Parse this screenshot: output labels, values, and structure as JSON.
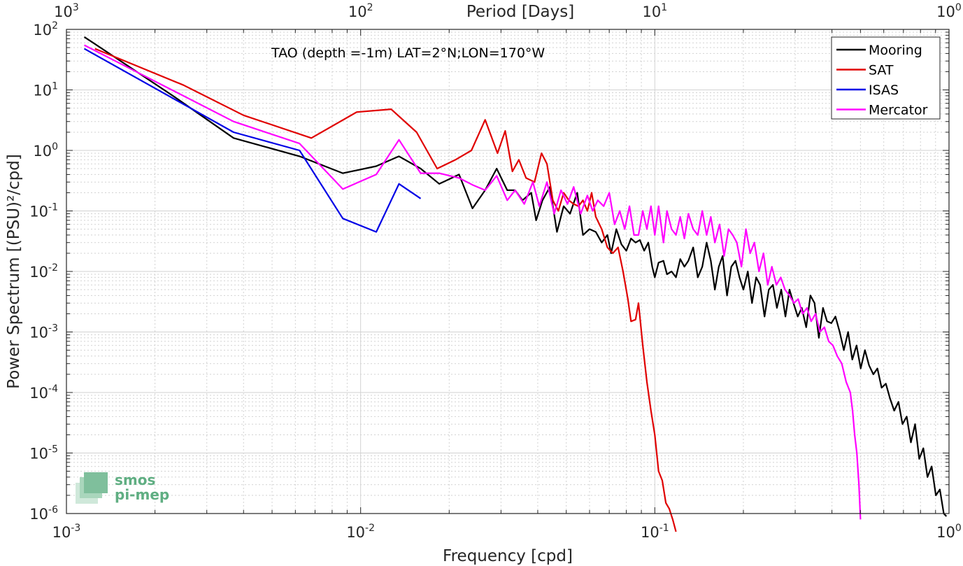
{
  "chart_data": {
    "type": "line",
    "title": "",
    "annotation": "TAO (depth =-1m) LAT=2°N;LON=170°W",
    "xlabel": "Frequency [cpd]",
    "ylabel": "Power Spectrum [(PSU)²/cpd]",
    "x2label": "Period [Days]",
    "xscale": "log",
    "yscale": "log",
    "xlim": [
      0.001,
      1
    ],
    "ylim": [
      1e-06,
      100
    ],
    "grid": true,
    "legend_position": "top-right",
    "x_ticks": [
      {
        "value": 0.001,
        "base": "10",
        "exp": "-3"
      },
      {
        "value": 0.01,
        "base": "10",
        "exp": "-2"
      },
      {
        "value": 0.1,
        "base": "10",
        "exp": "-1"
      },
      {
        "value": 1,
        "base": "10",
        "exp": "0"
      }
    ],
    "top_ticks": [
      {
        "value": 0.001,
        "base": "10",
        "exp": "3"
      },
      {
        "value": 0.01,
        "base": "10",
        "exp": "2"
      },
      {
        "value": 0.1,
        "base": "10",
        "exp": "1"
      },
      {
        "value": 1,
        "base": "10",
        "exp": "0"
      }
    ],
    "y_ticks": [
      {
        "value": 100,
        "base": "10",
        "exp": "2"
      },
      {
        "value": 10,
        "base": "10",
        "exp": "1"
      },
      {
        "value": 1,
        "base": "10",
        "exp": "0"
      },
      {
        "value": 0.1,
        "base": "10",
        "exp": "-1"
      },
      {
        "value": 0.01,
        "base": "10",
        "exp": "-2"
      },
      {
        "value": 0.001,
        "base": "10",
        "exp": "-3"
      },
      {
        "value": 0.0001,
        "base": "10",
        "exp": "-4"
      },
      {
        "value": 1e-05,
        "base": "10",
        "exp": "-5"
      },
      {
        "value": 1e-06,
        "base": "10",
        "exp": "-6"
      }
    ],
    "series": [
      {
        "name": "Mooring",
        "color": "#000000",
        "x": [
          0.00115,
          0.0023,
          0.0037,
          0.0062,
          0.0087,
          0.0113,
          0.0135,
          0.016,
          0.0185,
          0.0216,
          0.024,
          0.0265,
          0.029,
          0.0315,
          0.0335,
          0.0355,
          0.038,
          0.0395,
          0.0415,
          0.044,
          0.0465,
          0.049,
          0.0515,
          0.0545,
          0.057,
          0.06,
          0.063,
          0.066,
          0.069,
          0.071,
          0.074,
          0.077,
          0.08,
          0.083,
          0.086,
          0.089,
          0.092,
          0.095,
          0.098,
          0.1,
          0.103,
          0.107,
          0.11,
          0.114,
          0.118,
          0.122,
          0.126,
          0.13,
          0.135,
          0.14,
          0.145,
          0.15,
          0.155,
          0.16,
          0.165,
          0.17,
          0.176,
          0.182,
          0.188,
          0.194,
          0.2,
          0.207,
          0.214,
          0.221,
          0.228,
          0.236,
          0.244,
          0.252,
          0.26,
          0.269,
          0.278,
          0.287,
          0.296,
          0.306,
          0.316,
          0.327,
          0.338,
          0.349,
          0.361,
          0.373,
          0.385,
          0.398,
          0.411,
          0.425,
          0.439,
          0.454,
          0.469,
          0.485,
          0.501,
          0.518,
          0.535,
          0.553,
          0.571,
          0.59,
          0.61,
          0.63,
          0.651,
          0.673,
          0.695,
          0.718,
          0.742,
          0.767,
          0.792,
          0.818,
          0.845,
          0.873,
          0.902,
          0.931,
          0.96,
          0.98
        ],
        "y": [
          75,
          8,
          1.6,
          0.8,
          0.42,
          0.55,
          0.8,
          0.5,
          0.28,
          0.4,
          0.11,
          0.22,
          0.5,
          0.22,
          0.22,
          0.15,
          0.2,
          0.07,
          0.15,
          0.25,
          0.045,
          0.12,
          0.09,
          0.2,
          0.04,
          0.05,
          0.045,
          0.03,
          0.04,
          0.02,
          0.05,
          0.028,
          0.022,
          0.035,
          0.03,
          0.033,
          0.022,
          0.03,
          0.012,
          0.008,
          0.014,
          0.015,
          0.009,
          0.01,
          0.008,
          0.016,
          0.012,
          0.015,
          0.025,
          0.008,
          0.012,
          0.03,
          0.015,
          0.005,
          0.012,
          0.018,
          0.004,
          0.012,
          0.015,
          0.008,
          0.005,
          0.01,
          0.003,
          0.008,
          0.006,
          0.0018,
          0.005,
          0.006,
          0.0025,
          0.005,
          0.0018,
          0.005,
          0.003,
          0.0018,
          0.0025,
          0.0012,
          0.004,
          0.003,
          0.0008,
          0.0025,
          0.0015,
          0.0014,
          0.0018,
          0.001,
          0.0005,
          0.001,
          0.00035,
          0.0006,
          0.00025,
          0.0005,
          0.00028,
          0.0002,
          0.00025,
          0.00012,
          0.00014,
          8e-05,
          5e-05,
          7e-05,
          3e-05,
          4e-05,
          1.5e-05,
          3e-05,
          8e-06,
          1.2e-05,
          4e-06,
          6e-06,
          2e-06,
          2.5e-06,
          1e-06,
          9e-07
        ]
      },
      {
        "name": "SAT",
        "color": "#e00000",
        "x": [
          0.00125,
          0.0025,
          0.004,
          0.0068,
          0.0097,
          0.0127,
          0.0155,
          0.0182,
          0.021,
          0.0238,
          0.0265,
          0.0292,
          0.031,
          0.0328,
          0.0345,
          0.0365,
          0.039,
          0.0412,
          0.043,
          0.045,
          0.047,
          0.049,
          0.051,
          0.053,
          0.055,
          0.057,
          0.059,
          0.061,
          0.063,
          0.066,
          0.069,
          0.072,
          0.075,
          0.078,
          0.081,
          0.083,
          0.086,
          0.088,
          0.091,
          0.094,
          0.097,
          0.1,
          0.103,
          0.106,
          0.109,
          0.112,
          0.115,
          0.118
        ],
        "y": [
          48,
          12,
          3.8,
          1.6,
          4.3,
          4.8,
          2,
          0.5,
          0.7,
          1,
          3.2,
          0.9,
          2.1,
          0.45,
          0.7,
          0.35,
          0.3,
          0.9,
          0.6,
          0.15,
          0.1,
          0.2,
          0.15,
          0.13,
          0.12,
          0.15,
          0.1,
          0.2,
          0.08,
          0.05,
          0.025,
          0.02,
          0.025,
          0.01,
          0.0035,
          0.0015,
          0.0016,
          0.003,
          0.0006,
          0.00015,
          5e-05,
          2e-05,
          5e-06,
          3.5e-06,
          1.5e-06,
          1.2e-06,
          8e-07,
          5e-07
        ]
      },
      {
        "name": "ISAS",
        "color": "#0000e6",
        "x": [
          0.00115,
          0.0037,
          0.0062,
          0.0087,
          0.0113,
          0.0135,
          0.016
        ],
        "y": [
          48,
          2,
          1,
          0.075,
          0.045,
          0.28,
          0.16
        ]
      },
      {
        "name": "Mercator",
        "color": "#ff00ff",
        "x": [
          0.00115,
          0.0037,
          0.0062,
          0.0087,
          0.0113,
          0.0135,
          0.016,
          0.0185,
          0.0216,
          0.024,
          0.0265,
          0.029,
          0.0315,
          0.0335,
          0.036,
          0.0385,
          0.0405,
          0.043,
          0.0455,
          0.048,
          0.0505,
          0.053,
          0.056,
          0.059,
          0.0615,
          0.064,
          0.067,
          0.07,
          0.073,
          0.076,
          0.079,
          0.082,
          0.085,
          0.088,
          0.091,
          0.094,
          0.097,
          0.1,
          0.103,
          0.107,
          0.11,
          0.114,
          0.118,
          0.122,
          0.126,
          0.13,
          0.135,
          0.14,
          0.145,
          0.15,
          0.155,
          0.16,
          0.166,
          0.172,
          0.178,
          0.184,
          0.19,
          0.197,
          0.204,
          0.211,
          0.218,
          0.226,
          0.234,
          0.242,
          0.25,
          0.259,
          0.268,
          0.277,
          0.287,
          0.297,
          0.307,
          0.318,
          0.329,
          0.34,
          0.352,
          0.364,
          0.377,
          0.39,
          0.403,
          0.417,
          0.432,
          0.447,
          0.462,
          0.47,
          0.478,
          0.486,
          0.494,
          0.5
        ],
        "y": [
          55,
          3,
          1.3,
          0.23,
          0.4,
          1.5,
          0.42,
          0.42,
          0.35,
          0.27,
          0.22,
          0.38,
          0.15,
          0.22,
          0.13,
          0.3,
          0.12,
          0.3,
          0.09,
          0.22,
          0.13,
          0.25,
          0.09,
          0.18,
          0.1,
          0.15,
          0.12,
          0.2,
          0.06,
          0.1,
          0.05,
          0.12,
          0.04,
          0.04,
          0.1,
          0.05,
          0.12,
          0.04,
          0.12,
          0.03,
          0.1,
          0.05,
          0.04,
          0.08,
          0.035,
          0.09,
          0.05,
          0.04,
          0.1,
          0.04,
          0.08,
          0.03,
          0.06,
          0.018,
          0.05,
          0.04,
          0.03,
          0.012,
          0.05,
          0.02,
          0.03,
          0.01,
          0.02,
          0.006,
          0.012,
          0.006,
          0.008,
          0.005,
          0.004,
          0.003,
          0.0035,
          0.002,
          0.0025,
          0.0015,
          0.002,
          0.001,
          0.0012,
          0.0007,
          0.0006,
          0.0004,
          0.0003,
          0.00015,
          0.0001,
          5e-05,
          2e-05,
          1e-05,
          3e-06,
          8e-07
        ]
      }
    ]
  },
  "watermark": {
    "line1": "smos",
    "line2": "pi-mep"
  }
}
